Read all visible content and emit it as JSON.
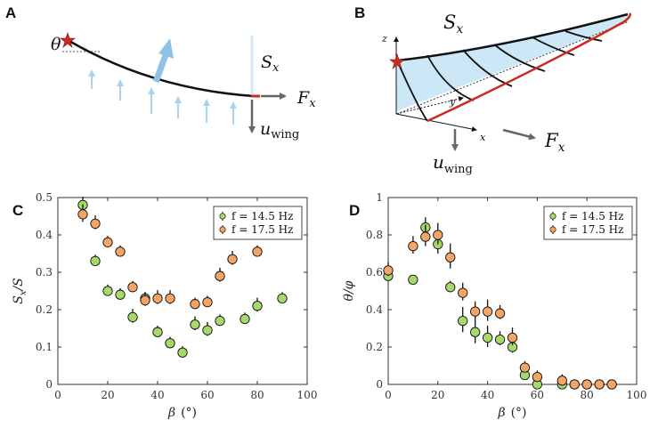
{
  "colors": {
    "green": "#a6d96a",
    "orange": "#f4a566",
    "light_blue": "#a9d2ee",
    "fill_blue": "#cce8f7",
    "red": "#cc2a1e",
    "gray": "#666666"
  },
  "panels": {
    "A": {
      "letter": "A",
      "theta": "θ",
      "S": "S",
      "S_sub": "x",
      "F": "F",
      "F_sub": "x",
      "u": "u",
      "u_sub": "wing"
    },
    "B": {
      "letter": "B",
      "S": "S",
      "S_sub": "x",
      "F": "F",
      "F_sub": "x",
      "u": "u",
      "u_sub": "wing",
      "z": "z",
      "y": "y",
      "x": "x"
    }
  },
  "chart_data": [
    {
      "panel": "C",
      "type": "scatter",
      "xlabel": "β",
      "xunit": "(°)",
      "ylabel_main": "S",
      "ylabel_sub": "x",
      "ylabel_tail": "/S",
      "xlim": [
        0,
        100
      ],
      "ylim": [
        0,
        0.5
      ],
      "xticks": [
        "0",
        "20",
        "40",
        "60",
        "80",
        "100"
      ],
      "yticks": [
        "0",
        "0.1",
        "0.2",
        "0.3",
        "0.4",
        "0.5"
      ],
      "legend": [
        "f = 14.5 Hz",
        "f = 17.5 Hz"
      ],
      "series": [
        {
          "name": "f = 14.5 Hz",
          "x": [
            10,
            15,
            20,
            25,
            30,
            35,
            40,
            45,
            50,
            55,
            60,
            65,
            75,
            80,
            90
          ],
          "y": [
            0.48,
            0.33,
            0.25,
            0.24,
            0.18,
            0.23,
            0.14,
            0.11,
            0.085,
            0.16,
            0.145,
            0.17,
            0.175,
            0.21,
            0.23
          ],
          "err": [
            0.015,
            0.01,
            0.01,
            0.01,
            0.015,
            0.01,
            0.01,
            0.01,
            0.01,
            0.015,
            0.015,
            0.01,
            0.01,
            0.015,
            0.01
          ]
        },
        {
          "name": "f = 17.5 Hz",
          "x": [
            10,
            15,
            20,
            25,
            30,
            35,
            40,
            45,
            55,
            60,
            65,
            70,
            80
          ],
          "y": [
            0.455,
            0.43,
            0.38,
            0.355,
            0.26,
            0.225,
            0.23,
            0.23,
            0.215,
            0.22,
            0.29,
            0.335,
            0.355
          ],
          "err": [
            0.02,
            0.015,
            0.01,
            0.01,
            0.01,
            0.015,
            0.015,
            0.015,
            0.01,
            0.01,
            0.015,
            0.015,
            0.01
          ]
        }
      ]
    },
    {
      "panel": "D",
      "type": "scatter",
      "xlabel": "β",
      "xunit": "(°)",
      "ylabel_main": "θ/φ",
      "xlim": [
        0,
        100
      ],
      "ylim": [
        0,
        1
      ],
      "xticks": [
        "0",
        "20",
        "40",
        "60",
        "80",
        "100"
      ],
      "yticks": [
        "0",
        "0.2",
        "0.4",
        "0.6",
        "0.8",
        "1"
      ],
      "legend": [
        "f = 14.5 Hz",
        "f = 17.5 Hz"
      ],
      "series": [
        {
          "name": "f = 14.5 Hz",
          "x": [
            0,
            10,
            15,
            20,
            25,
            30,
            35,
            40,
            45,
            50,
            55,
            60,
            70,
            75,
            80,
            85,
            90
          ],
          "y": [
            0.58,
            0.56,
            0.84,
            0.75,
            0.52,
            0.34,
            0.28,
            0.25,
            0.24,
            0.2,
            0.05,
            0.0,
            0.0,
            0.0,
            0.0,
            0.0,
            0.0
          ],
          "err": [
            0.02,
            0.01,
            0.04,
            0.05,
            0.02,
            0.06,
            0.06,
            0.05,
            0.03,
            0.03,
            0.02,
            0.01,
            0.01,
            0.01,
            0.01,
            0.01,
            0.01
          ]
        },
        {
          "name": "f = 17.5 Hz",
          "x": [
            0,
            10,
            15,
            20,
            25,
            30,
            35,
            40,
            45,
            50,
            55,
            60,
            70,
            75,
            80,
            85,
            90
          ],
          "y": [
            0.61,
            0.74,
            0.79,
            0.8,
            0.68,
            0.49,
            0.39,
            0.39,
            0.38,
            0.25,
            0.09,
            0.04,
            0.02,
            0.0,
            0.0,
            0.0,
            0.0
          ],
          "err": [
            0.03,
            0.04,
            0.05,
            0.05,
            0.06,
            0.04,
            0.04,
            0.05,
            0.03,
            0.04,
            0.02,
            0.02,
            0.02,
            0.01,
            0.01,
            0.01,
            0.01
          ]
        }
      ]
    }
  ]
}
